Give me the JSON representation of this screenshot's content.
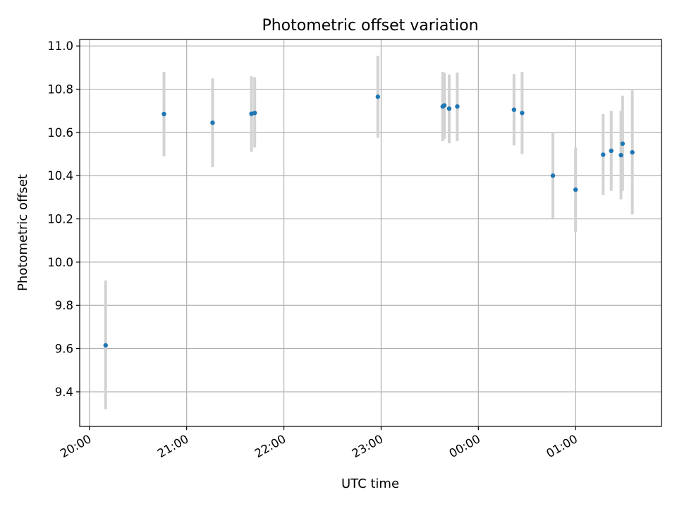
{
  "chart_data": {
    "type": "scatter",
    "title": "Photometric offset variation",
    "xlabel": "UTC time",
    "ylabel": "Photometric offset",
    "x_unit": "UTC time",
    "x_ticks": [
      "20:00",
      "21:00",
      "22:00",
      "23:00",
      "00:00",
      "01:00"
    ],
    "x_range": [
      "19:54",
      "01:53"
    ],
    "y_ticks": [
      "9.4",
      "9.6",
      "9.8",
      "10.0",
      "10.2",
      "10.4",
      "10.6",
      "10.8",
      "11.0"
    ],
    "ylim": [
      9.24,
      11.03
    ],
    "grid": true,
    "colors": {
      "point": "#1f77b4",
      "errorbar": "#d3d3d3",
      "grid": "#b0b0b0"
    },
    "series": [
      {
        "points": [
          {
            "x": "20:10",
            "y": 9.615,
            "yerr_low": 9.32,
            "yerr_high": 9.915
          },
          {
            "x": "20:46",
            "y": 10.685,
            "yerr_low": 10.49,
            "yerr_high": 10.88
          },
          {
            "x": "21:16",
            "y": 10.645,
            "yerr_low": 10.44,
            "yerr_high": 10.85
          },
          {
            "x": "21:40",
            "y": 10.686,
            "yerr_low": 10.51,
            "yerr_high": 10.86
          },
          {
            "x": "21:42",
            "y": 10.69,
            "yerr_low": 10.53,
            "yerr_high": 10.855
          },
          {
            "x": "22:58",
            "y": 10.765,
            "yerr_low": 10.575,
            "yerr_high": 10.955
          },
          {
            "x": "23:38",
            "y": 10.72,
            "yerr_low": 10.56,
            "yerr_high": 10.88
          },
          {
            "x": "23:39",
            "y": 10.725,
            "yerr_low": 10.57,
            "yerr_high": 10.875
          },
          {
            "x": "23:42",
            "y": 10.71,
            "yerr_low": 10.55,
            "yerr_high": 10.868
          },
          {
            "x": "23:47",
            "y": 10.72,
            "yerr_low": 10.56,
            "yerr_high": 10.877
          },
          {
            "x": "00:22",
            "y": 10.705,
            "yerr_low": 10.54,
            "yerr_high": 10.87
          },
          {
            "x": "00:27",
            "y": 10.69,
            "yerr_low": 10.5,
            "yerr_high": 10.88
          },
          {
            "x": "00:46",
            "y": 10.4,
            "yerr_low": 10.2,
            "yerr_high": 10.6
          },
          {
            "x": "01:00",
            "y": 10.335,
            "yerr_low": 10.14,
            "yerr_high": 10.53
          },
          {
            "x": "01:17",
            "y": 10.497,
            "yerr_low": 10.31,
            "yerr_high": 10.685
          },
          {
            "x": "01:22",
            "y": 10.515,
            "yerr_low": 10.33,
            "yerr_high": 10.7
          },
          {
            "x": "01:28",
            "y": 10.495,
            "yerr_low": 10.29,
            "yerr_high": 10.7
          },
          {
            "x": "01:29",
            "y": 10.548,
            "yerr_low": 10.33,
            "yerr_high": 10.77
          },
          {
            "x": "01:35",
            "y": 10.508,
            "yerr_low": 10.22,
            "yerr_high": 10.795
          }
        ]
      }
    ]
  }
}
